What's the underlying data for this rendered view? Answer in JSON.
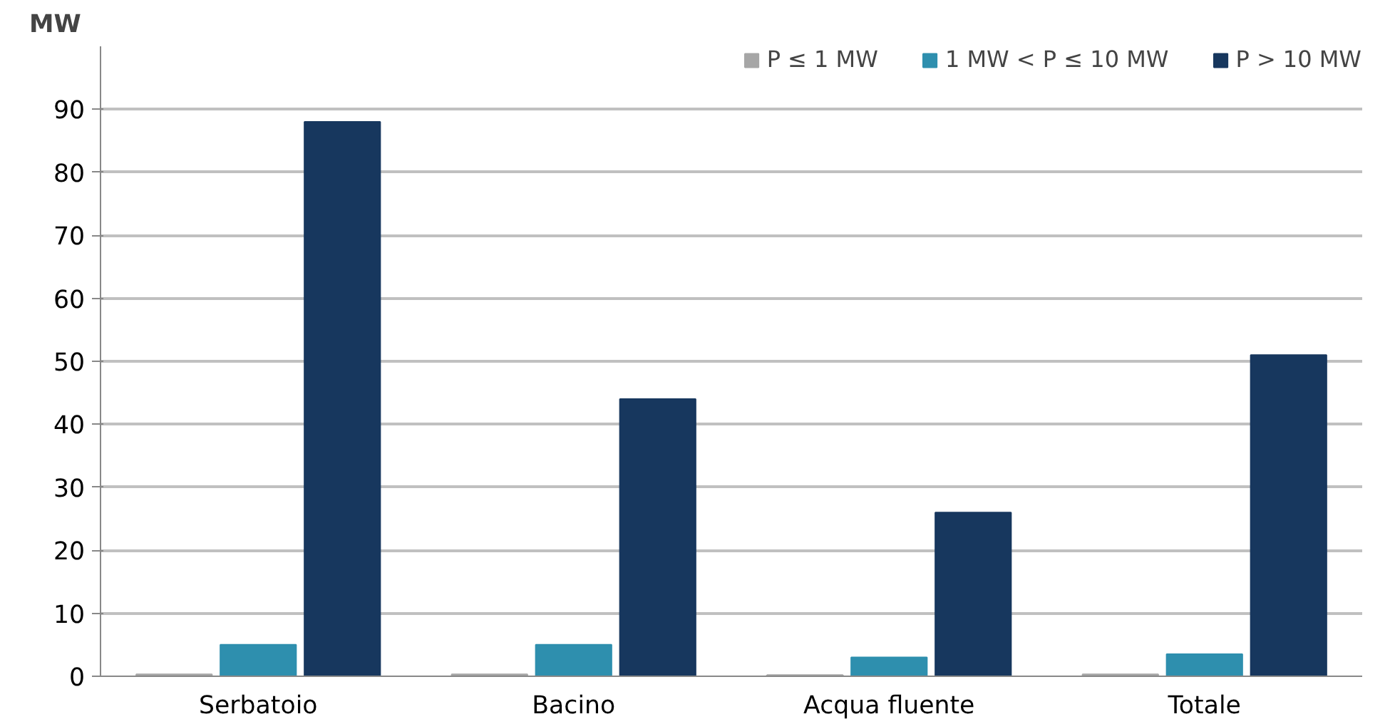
{
  "chart_data": {
    "type": "bar",
    "ylabel": "MW",
    "categories": [
      "Serbatoio",
      "Bacino",
      "Acqua fluente",
      "Totale"
    ],
    "series": [
      {
        "name": "P ≤ 1 MW",
        "color": "#a6a6a6",
        "values": [
          0.3,
          0.3,
          0.2,
          0.3
        ]
      },
      {
        "name": "1 MW < P ≤ 10 MW",
        "color": "#2e8fae",
        "values": [
          5,
          5,
          3,
          3.5
        ]
      },
      {
        "name": "P > 10 MW",
        "color": "#17375e",
        "values": [
          88,
          44,
          26,
          51
        ]
      }
    ],
    "ylim": [
      0,
      100
    ],
    "yticks": [
      0,
      10,
      20,
      30,
      40,
      50,
      60,
      70,
      80,
      90
    ],
    "grid": "y",
    "legend": "top right"
  }
}
